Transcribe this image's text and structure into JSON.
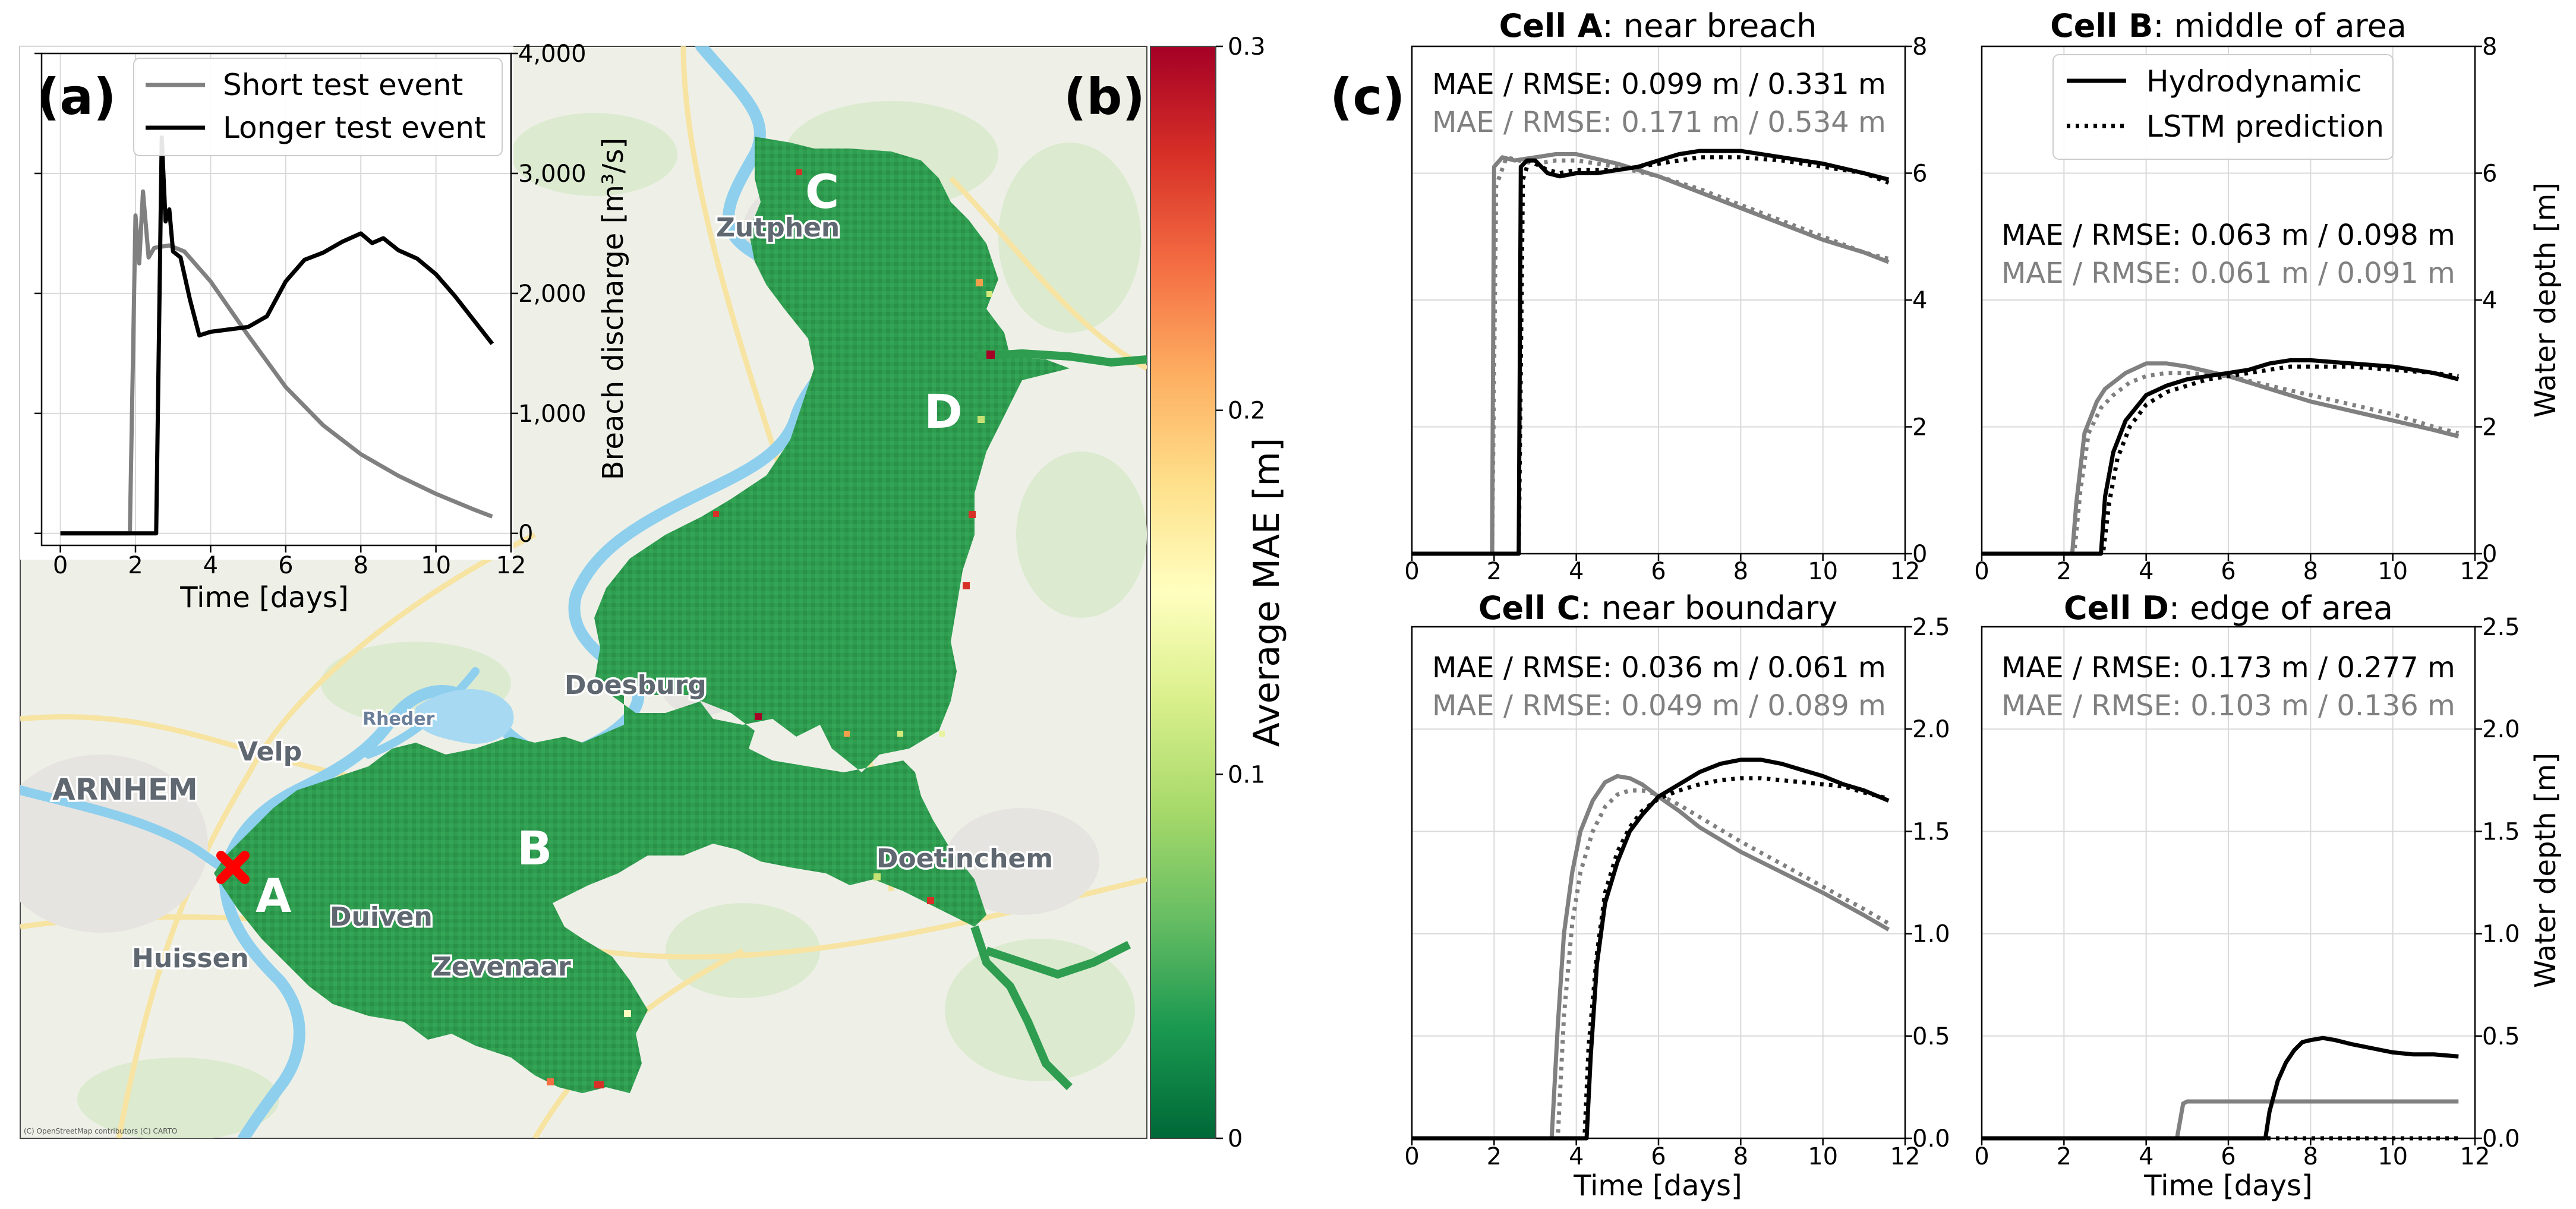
{
  "panel_labels": {
    "a": "(a)",
    "b": "(b)",
    "c": "(c)"
  },
  "map": {
    "towns": [
      "Zutphen",
      "Doesburg",
      "Rheder",
      "Velp",
      "ARNHEM",
      "Duiven",
      "Huissen",
      "Zevenaar",
      "Doetinchem"
    ],
    "cells": [
      "A",
      "B",
      "C",
      "D"
    ],
    "copyright": "(C) OpenStreetMap contributors (C) CARTO",
    "colors": {
      "land": "#eef0e7",
      "green_area": "#dfecd2",
      "water": "#8ecfee",
      "flood": "#2e9e4f",
      "breach_marker": "#ff0000"
    }
  },
  "colorbar": {
    "label": "Average MAE [m]",
    "ticks": [
      "0",
      "0.1",
      "0.2",
      "0.3"
    ],
    "range": [
      0,
      0.3
    ],
    "colormap": "RdYlGn_r"
  },
  "chart_data": [
    {
      "id": "a",
      "type": "line",
      "xlabel": "Time [days]",
      "ylabel": "Breach discharge [m³/s]",
      "xlim": [
        -0.5,
        12
      ],
      "ylim": [
        -100,
        4000
      ],
      "xticks": [
        0,
        2,
        4,
        6,
        8,
        10,
        12
      ],
      "yticks": [
        0,
        1000,
        2000,
        3000,
        4000
      ],
      "ytick_labels": [
        "0",
        "1,000",
        "2,000",
        "3,000",
        "4,000"
      ],
      "grid": true,
      "legend": "top-right",
      "series": [
        {
          "name": "Short test event",
          "color": "#808080",
          "x": [
            0,
            1.85,
            2.0,
            2.1,
            2.2,
            2.35,
            2.5,
            2.9,
            3.3,
            4.0,
            5.0,
            6.0,
            7.0,
            8.0,
            9.0,
            10.0,
            11.0,
            11.5
          ],
          "y": [
            0,
            0,
            2650,
            2250,
            2850,
            2300,
            2380,
            2400,
            2350,
            2100,
            1650,
            1220,
            900,
            660,
            480,
            330,
            200,
            140
          ]
        },
        {
          "name": "Longer test event",
          "color": "#000000",
          "x": [
            0,
            2.55,
            2.7,
            2.8,
            2.9,
            3.0,
            3.2,
            3.45,
            3.7,
            4.0,
            5.0,
            5.5,
            6.0,
            6.5,
            7.0,
            7.5,
            8.0,
            8.3,
            8.6,
            9.0,
            9.5,
            10.0,
            10.5,
            11.0,
            11.5
          ],
          "y": [
            0,
            0,
            3300,
            2600,
            2700,
            2350,
            2300,
            1950,
            1650,
            1680,
            1720,
            1810,
            2100,
            2280,
            2340,
            2430,
            2500,
            2420,
            2460,
            2360,
            2290,
            2160,
            1980,
            1780,
            1580
          ]
        }
      ]
    },
    {
      "id": "cellA",
      "type": "line",
      "title_bold": "Cell A",
      "title_rest": ": near breach",
      "xlabel": "",
      "ylabel": "",
      "xlim": [
        0,
        12
      ],
      "ylim": [
        0,
        8
      ],
      "xticks": [
        0,
        2,
        4,
        6,
        8,
        10,
        12
      ],
      "yticks": [
        0,
        2,
        4,
        6,
        8
      ],
      "grid": true,
      "metrics": {
        "longer": "MAE / RMSE: 0.099 m / 0.331 m",
        "short": "MAE / RMSE: 0.171 m / 0.534 m"
      },
      "series": [
        {
          "event": "short",
          "kind": "hydro",
          "x": [
            0,
            1.95,
            2.0,
            2.2,
            2.5,
            3.0,
            3.5,
            4.0,
            5.0,
            6.0,
            7.0,
            8.0,
            9.0,
            10.0,
            11.0,
            11.6
          ],
          "y": [
            0,
            0,
            6.1,
            6.25,
            6.2,
            6.25,
            6.3,
            6.3,
            6.15,
            5.95,
            5.7,
            5.45,
            5.2,
            4.95,
            4.75,
            4.6
          ]
        },
        {
          "event": "short",
          "kind": "lstm",
          "x": [
            0,
            1.95,
            2.05,
            2.3,
            2.6,
            3.0,
            3.5,
            4.0,
            5.0,
            6.0,
            7.0,
            8.0,
            9.0,
            10.0,
            11.0,
            11.6
          ],
          "y": [
            0,
            0,
            5.8,
            6.25,
            6.2,
            6.15,
            6.2,
            6.2,
            6.1,
            5.95,
            5.75,
            5.5,
            5.25,
            5.0,
            4.75,
            4.65
          ]
        },
        {
          "event": "longer",
          "kind": "hydro",
          "x": [
            0,
            2.6,
            2.65,
            2.8,
            3.0,
            3.3,
            3.6,
            4.0,
            4.5,
            5.0,
            5.5,
            6.0,
            6.5,
            7.0,
            7.5,
            8.0,
            9.0,
            10.0,
            11.0,
            11.6
          ],
          "y": [
            0,
            0,
            6.1,
            6.2,
            6.2,
            6.0,
            5.95,
            6.0,
            6.0,
            6.05,
            6.1,
            6.2,
            6.3,
            6.35,
            6.35,
            6.35,
            6.25,
            6.15,
            6.0,
            5.9
          ]
        },
        {
          "event": "longer",
          "kind": "lstm",
          "x": [
            0,
            2.6,
            2.7,
            2.85,
            3.0,
            3.3,
            3.6,
            4.0,
            4.5,
            5.0,
            5.5,
            6.0,
            6.5,
            7.0,
            7.5,
            8.0,
            9.0,
            10.0,
            11.0,
            11.6
          ],
          "y": [
            0,
            0,
            5.9,
            6.2,
            6.15,
            6.05,
            6.0,
            6.05,
            6.05,
            6.05,
            6.1,
            6.15,
            6.2,
            6.25,
            6.25,
            6.25,
            6.2,
            6.1,
            6.0,
            5.85
          ]
        }
      ]
    },
    {
      "id": "cellB",
      "type": "line",
      "title_bold": "Cell B",
      "title_rest": ": middle of area",
      "xlabel": "",
      "ylabel": "Water depth [m]",
      "xlim": [
        0,
        12
      ],
      "ylim": [
        0,
        8
      ],
      "xticks": [
        0,
        2,
        4,
        6,
        8,
        10,
        12
      ],
      "yticks": [
        0,
        2,
        4,
        6,
        8
      ],
      "grid": true,
      "legend": "top-center",
      "legend_entries": {
        "hydro": "Hydrodynamic",
        "lstm": "LSTM prediction"
      },
      "metrics": {
        "longer": "MAE / RMSE: 0.063 m / 0.098 m",
        "short": "MAE / RMSE: 0.061 m / 0.091 m"
      },
      "series": [
        {
          "event": "short",
          "kind": "hydro",
          "x": [
            0,
            2.2,
            2.3,
            2.5,
            2.8,
            3.0,
            3.5,
            4.0,
            4.5,
            5.0,
            6.0,
            7.0,
            8.0,
            9.0,
            10.0,
            11.0,
            11.6
          ],
          "y": [
            0,
            0,
            0.8,
            1.9,
            2.4,
            2.6,
            2.85,
            3.0,
            3.0,
            2.95,
            2.8,
            2.6,
            2.4,
            2.25,
            2.1,
            1.95,
            1.85
          ]
        },
        {
          "event": "short",
          "kind": "lstm",
          "x": [
            0,
            2.25,
            2.4,
            2.6,
            2.9,
            3.2,
            3.6,
            4.0,
            4.5,
            5.0,
            6.0,
            7.0,
            8.0,
            9.0,
            10.0,
            11.0,
            11.6
          ],
          "y": [
            0,
            0,
            1.0,
            1.9,
            2.3,
            2.5,
            2.7,
            2.8,
            2.85,
            2.85,
            2.8,
            2.65,
            2.5,
            2.35,
            2.2,
            2.0,
            1.9
          ]
        },
        {
          "event": "longer",
          "kind": "hydro",
          "x": [
            0,
            2.9,
            3.0,
            3.2,
            3.5,
            4.0,
            4.5,
            5.0,
            5.5,
            6.0,
            6.5,
            7.0,
            7.5,
            8.0,
            9.0,
            10.0,
            11.0,
            11.6
          ],
          "y": [
            0,
            0,
            0.9,
            1.6,
            2.1,
            2.5,
            2.65,
            2.75,
            2.8,
            2.85,
            2.9,
            3.0,
            3.05,
            3.05,
            3.0,
            2.95,
            2.85,
            2.75
          ]
        },
        {
          "event": "longer",
          "kind": "lstm",
          "x": [
            0,
            2.95,
            3.1,
            3.3,
            3.6,
            4.0,
            4.5,
            5.0,
            5.5,
            6.0,
            6.5,
            7.0,
            7.5,
            8.0,
            9.0,
            10.0,
            11.0,
            11.6
          ],
          "y": [
            0,
            0,
            0.8,
            1.5,
            2.0,
            2.35,
            2.55,
            2.65,
            2.75,
            2.8,
            2.85,
            2.9,
            2.95,
            2.95,
            2.95,
            2.9,
            2.85,
            2.8
          ]
        }
      ]
    },
    {
      "id": "cellC",
      "type": "line",
      "title_bold": "Cell C",
      "title_rest": ": near boundary",
      "xlabel": "Time [days]",
      "ylabel": "",
      "xlim": [
        0,
        12
      ],
      "ylim": [
        0,
        2.5
      ],
      "xticks": [
        0,
        2,
        4,
        6,
        8,
        10,
        12
      ],
      "yticks": [
        0.0,
        0.5,
        1.0,
        1.5,
        2.0,
        2.5
      ],
      "grid": true,
      "metrics": {
        "longer": "MAE / RMSE: 0.036 m / 0.061 m",
        "short": "MAE / RMSE: 0.049 m / 0.089 m"
      },
      "series": [
        {
          "event": "short",
          "kind": "hydro",
          "x": [
            0,
            3.4,
            3.55,
            3.7,
            3.9,
            4.1,
            4.4,
            4.7,
            5.0,
            5.3,
            5.6,
            6.0,
            6.5,
            7.0,
            8.0,
            9.0,
            10.0,
            11.0,
            11.6
          ],
          "y": [
            0,
            0,
            0.55,
            1.0,
            1.3,
            1.5,
            1.65,
            1.74,
            1.77,
            1.76,
            1.73,
            1.67,
            1.6,
            1.52,
            1.4,
            1.3,
            1.2,
            1.09,
            1.02
          ]
        },
        {
          "event": "short",
          "kind": "lstm",
          "x": [
            0,
            3.55,
            3.7,
            3.9,
            4.1,
            4.4,
            4.7,
            5.0,
            5.3,
            5.6,
            6.0,
            6.5,
            7.0,
            8.0,
            9.0,
            10.0,
            11.0,
            11.6
          ],
          "y": [
            0,
            0,
            0.6,
            1.05,
            1.3,
            1.5,
            1.62,
            1.68,
            1.7,
            1.7,
            1.68,
            1.63,
            1.57,
            1.45,
            1.34,
            1.23,
            1.12,
            1.05
          ]
        },
        {
          "event": "longer",
          "kind": "hydro",
          "x": [
            0,
            4.25,
            4.35,
            4.5,
            4.7,
            5.0,
            5.3,
            5.6,
            6.0,
            6.5,
            7.0,
            7.5,
            8.0,
            8.5,
            9.0,
            9.5,
            10.0,
            10.5,
            11.0,
            11.6
          ],
          "y": [
            0,
            0,
            0.4,
            0.85,
            1.15,
            1.35,
            1.5,
            1.58,
            1.67,
            1.73,
            1.79,
            1.83,
            1.85,
            1.85,
            1.83,
            1.8,
            1.77,
            1.73,
            1.7,
            1.65
          ]
        },
        {
          "event": "longer",
          "kind": "lstm",
          "x": [
            0,
            4.2,
            4.3,
            4.5,
            4.7,
            5.0,
            5.3,
            5.6,
            6.0,
            6.5,
            7.0,
            7.5,
            8.0,
            8.5,
            9.0,
            9.5,
            10.0,
            10.5,
            11.0,
            11.6
          ],
          "y": [
            0,
            0,
            0.45,
            0.9,
            1.2,
            1.4,
            1.52,
            1.6,
            1.66,
            1.7,
            1.73,
            1.75,
            1.76,
            1.76,
            1.75,
            1.74,
            1.73,
            1.72,
            1.69,
            1.66
          ]
        }
      ]
    },
    {
      "id": "cellD",
      "type": "line",
      "title_bold": "Cell D",
      "title_rest": ": edge of area",
      "xlabel": "Time [days]",
      "ylabel": "Water depth [m]",
      "xlim": [
        0,
        12
      ],
      "ylim": [
        0,
        2.5
      ],
      "xticks": [
        0,
        2,
        4,
        6,
        8,
        10,
        12
      ],
      "yticks": [
        0.0,
        0.5,
        1.0,
        1.5,
        2.0,
        2.5
      ],
      "grid": true,
      "metrics": {
        "longer": "MAE / RMSE: 0.173 m / 0.277 m",
        "short": "MAE / RMSE: 0.103 m / 0.136 m"
      },
      "series": [
        {
          "event": "short",
          "kind": "hydro",
          "x": [
            0,
            4.75,
            4.9,
            5.0,
            6.0,
            8.0,
            10.0,
            11.6
          ],
          "y": [
            0,
            0,
            0.17,
            0.18,
            0.18,
            0.18,
            0.18,
            0.18
          ]
        },
        {
          "event": "short",
          "kind": "lstm",
          "x": [
            0,
            11.6
          ],
          "y": [
            0,
            0
          ]
        },
        {
          "event": "longer",
          "kind": "hydro",
          "x": [
            0,
            6.9,
            7.0,
            7.2,
            7.4,
            7.6,
            7.8,
            8.0,
            8.3,
            8.6,
            9.0,
            9.5,
            10.0,
            10.5,
            11.0,
            11.6
          ],
          "y": [
            0,
            0,
            0.13,
            0.28,
            0.37,
            0.43,
            0.47,
            0.48,
            0.49,
            0.48,
            0.46,
            0.44,
            0.42,
            0.41,
            0.41,
            0.4
          ]
        },
        {
          "event": "longer",
          "kind": "lstm",
          "x": [
            0,
            11.6
          ],
          "y": [
            0,
            0
          ]
        }
      ]
    }
  ]
}
